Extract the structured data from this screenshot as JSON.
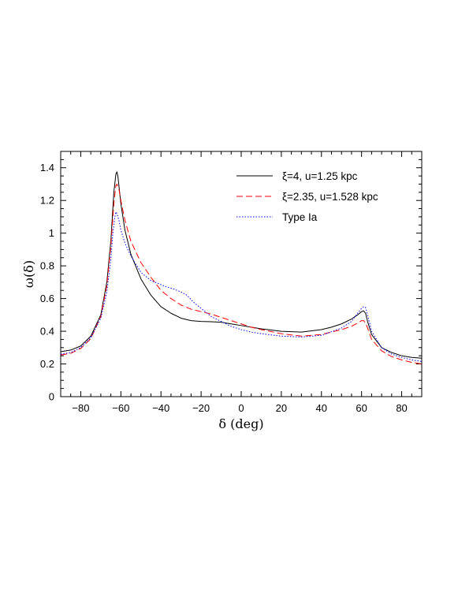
{
  "chart_data": {
    "type": "line",
    "xlabel": "δ (deg)",
    "ylabel": "ω(δ)",
    "xlim": [
      -90,
      90
    ],
    "ylim": [
      0,
      1.5
    ],
    "xticks": [
      -80,
      -60,
      -40,
      -20,
      0,
      20,
      40,
      60,
      80
    ],
    "yticks": [
      0,
      0.2,
      0.4,
      0.6,
      0.8,
      1,
      1.2,
      1.4
    ],
    "ytick_labels": [
      "0",
      "0.2",
      "0.4",
      "0.6",
      "0.8",
      "1",
      "1.2",
      "1.4"
    ],
    "legend_position": "top-right",
    "grid": false,
    "series": [
      {
        "name": "ξ=4, u=1.25 kpc",
        "color": "#000000",
        "style": "solid",
        "x": [
          -90,
          -85,
          -80,
          -75,
          -70,
          -67,
          -65,
          -63.5,
          -62.5,
          -62,
          -61.5,
          -60,
          -58,
          -55,
          -50,
          -45,
          -40,
          -35,
          -30,
          -25,
          -20,
          -15,
          -10,
          -5,
          0,
          5,
          10,
          20,
          30,
          40,
          45,
          50,
          55,
          58,
          60,
          61,
          62,
          63,
          65,
          70,
          75,
          80,
          85,
          90
        ],
        "y": [
          0.275,
          0.285,
          0.31,
          0.37,
          0.5,
          0.7,
          0.95,
          1.25,
          1.36,
          1.375,
          1.35,
          1.18,
          1.02,
          0.87,
          0.72,
          0.62,
          0.55,
          0.51,
          0.48,
          0.465,
          0.46,
          0.458,
          0.455,
          0.445,
          0.435,
          0.425,
          0.415,
          0.4,
          0.395,
          0.41,
          0.425,
          0.445,
          0.475,
          0.5,
          0.52,
          0.525,
          0.51,
          0.46,
          0.38,
          0.3,
          0.27,
          0.25,
          0.24,
          0.235
        ]
      },
      {
        "name": "ξ=2.35, u=1.528 kpc",
        "color": "#ff0000",
        "style": "dashed",
        "x": [
          -90,
          -85,
          -80,
          -75,
          -70,
          -67,
          -65,
          -63.5,
          -62.5,
          -62,
          -61,
          -60,
          -58,
          -55,
          -50,
          -45,
          -40,
          -35,
          -30,
          -25,
          -20,
          -15,
          -10,
          -5,
          0,
          5,
          10,
          20,
          30,
          40,
          50,
          55,
          58,
          60,
          61,
          62,
          63,
          65,
          70,
          75,
          80,
          85,
          90
        ],
        "y": [
          0.255,
          0.265,
          0.295,
          0.355,
          0.49,
          0.68,
          0.92,
          1.18,
          1.29,
          1.3,
          1.27,
          1.2,
          1.08,
          0.95,
          0.82,
          0.73,
          0.65,
          0.6,
          0.56,
          0.535,
          0.52,
          0.505,
          0.485,
          0.465,
          0.445,
          0.425,
          0.41,
          0.385,
          0.37,
          0.38,
          0.41,
          0.43,
          0.45,
          0.465,
          0.465,
          0.45,
          0.42,
          0.35,
          0.28,
          0.245,
          0.225,
          0.21,
          0.2
        ]
      },
      {
        "name": "Type Ia",
        "color": "#0000ff",
        "style": "dotted",
        "x": [
          -90,
          -85,
          -80,
          -75,
          -70,
          -67,
          -65,
          -64,
          -63,
          -62.5,
          -62,
          -61,
          -60,
          -58,
          -55,
          -50,
          -45,
          -42,
          -40,
          -37,
          -34,
          -30,
          -27,
          -24,
          -20,
          -15,
          -10,
          -5,
          0,
          5,
          10,
          20,
          30,
          40,
          50,
          55,
          58,
          60,
          61,
          62,
          63,
          65,
          70,
          75,
          80,
          85,
          90
        ],
        "y": [
          0.26,
          0.27,
          0.3,
          0.36,
          0.48,
          0.64,
          0.84,
          1.0,
          1.1,
          1.13,
          1.12,
          1.08,
          1.02,
          0.94,
          0.86,
          0.76,
          0.71,
          0.695,
          0.685,
          0.67,
          0.66,
          0.64,
          0.62,
          0.58,
          0.54,
          0.49,
          0.46,
          0.43,
          0.41,
          0.395,
          0.385,
          0.37,
          0.365,
          0.375,
          0.42,
          0.46,
          0.51,
          0.54,
          0.55,
          0.545,
          0.5,
          0.4,
          0.3,
          0.26,
          0.24,
          0.225,
          0.215
        ]
      }
    ]
  }
}
